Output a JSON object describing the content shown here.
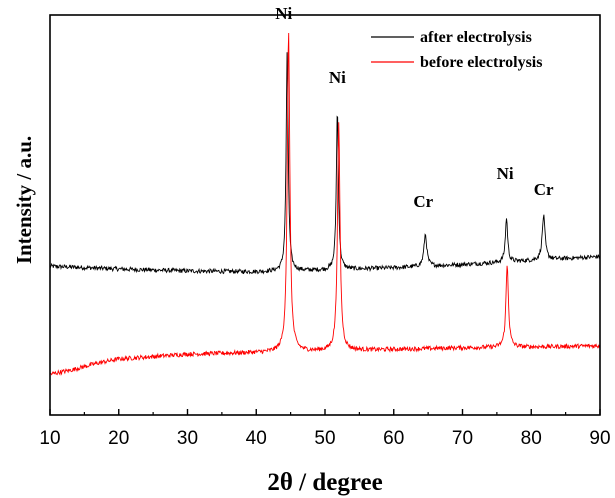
{
  "chart_data": {
    "type": "line",
    "xlabel": "2θ / degree",
    "ylabel": "Intensity / a.u.",
    "xlim": [
      10,
      90
    ],
    "ylim": [
      0,
      100
    ],
    "x_ticks": [
      "10",
      "20",
      "30",
      "40",
      "50",
      "60",
      "70",
      "80",
      "90"
    ],
    "grid": false,
    "legend_position": "top-right",
    "series": [
      {
        "name": "after electrolysis",
        "color": "#000000",
        "baseline": [
          [
            10,
            37.2
          ],
          [
            20,
            36.5
          ],
          [
            30,
            36.0
          ],
          [
            40,
            35.8
          ],
          [
            50,
            36.2
          ],
          [
            60,
            36.8
          ],
          [
            70,
            37.6
          ],
          [
            80,
            38.6
          ],
          [
            90,
            39.6
          ]
        ],
        "peaks": [
          {
            "x": 44.5,
            "height": 55.0,
            "width": 0.18
          },
          {
            "x": 51.8,
            "height": 40.0,
            "width": 0.18
          },
          {
            "x": 64.6,
            "height": 8.0,
            "width": 0.25
          },
          {
            "x": 76.4,
            "height": 11.0,
            "width": 0.2
          },
          {
            "x": 81.8,
            "height": 11.0,
            "width": 0.25
          }
        ]
      },
      {
        "name": "before electrolysis",
        "color": "#ff0000",
        "baseline": [
          [
            10,
            10.2
          ],
          [
            13,
            11.2
          ],
          [
            17,
            13.0
          ],
          [
            20,
            14.0
          ],
          [
            25,
            14.6
          ],
          [
            30,
            15.2
          ],
          [
            40,
            15.6
          ],
          [
            50,
            16.0
          ],
          [
            60,
            16.4
          ],
          [
            70,
            16.8
          ],
          [
            80,
            17.0
          ],
          [
            90,
            17.3
          ]
        ],
        "peaks": [
          {
            "x": 44.7,
            "height": 80.0,
            "width": 0.22
          },
          {
            "x": 52.0,
            "height": 56.5,
            "width": 0.22
          },
          {
            "x": 76.5,
            "height": 20.5,
            "width": 0.22
          }
        ]
      }
    ],
    "annotations": [
      {
        "text": "Ni",
        "x": 44.0,
        "y": 99
      },
      {
        "text": "Ni",
        "x": 51.8,
        "y": 83
      },
      {
        "text": "Cr",
        "x": 64.3,
        "y": 52
      },
      {
        "text": "Ni",
        "x": 76.2,
        "y": 59
      },
      {
        "text": "Cr",
        "x": 81.8,
        "y": 55
      }
    ]
  }
}
